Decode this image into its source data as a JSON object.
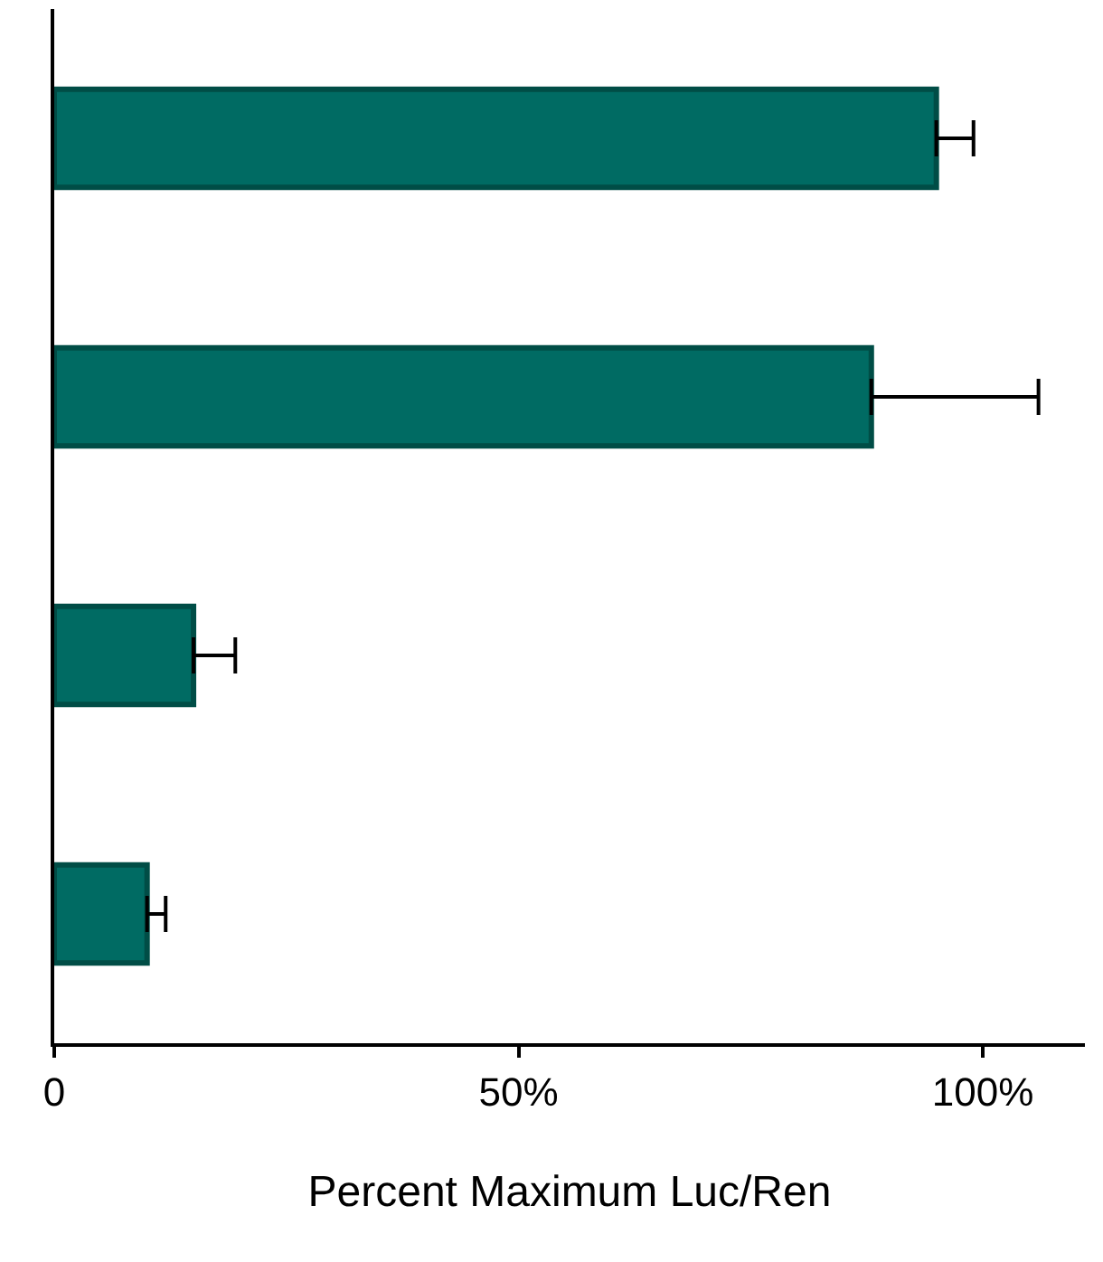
{
  "chart_data": {
    "type": "bar",
    "orientation": "horizontal",
    "categories": [
      null,
      null,
      null,
      null
    ],
    "values": [
      95,
      88,
      15,
      10
    ],
    "errors": [
      [
        95,
        99
      ],
      [
        88,
        106
      ],
      [
        15,
        19.5
      ],
      [
        10,
        12
      ]
    ],
    "color": "#006b63",
    "xlabel": "Percent Maximum Luc/Ren",
    "xlim": [
      0,
      111
    ],
    "xticks": [
      {
        "value": 0,
        "label": "0"
      },
      {
        "value": 50,
        "label": "50%"
      },
      {
        "value": 100,
        "label": "100%"
      }
    ],
    "tick_labels": "x"
  }
}
